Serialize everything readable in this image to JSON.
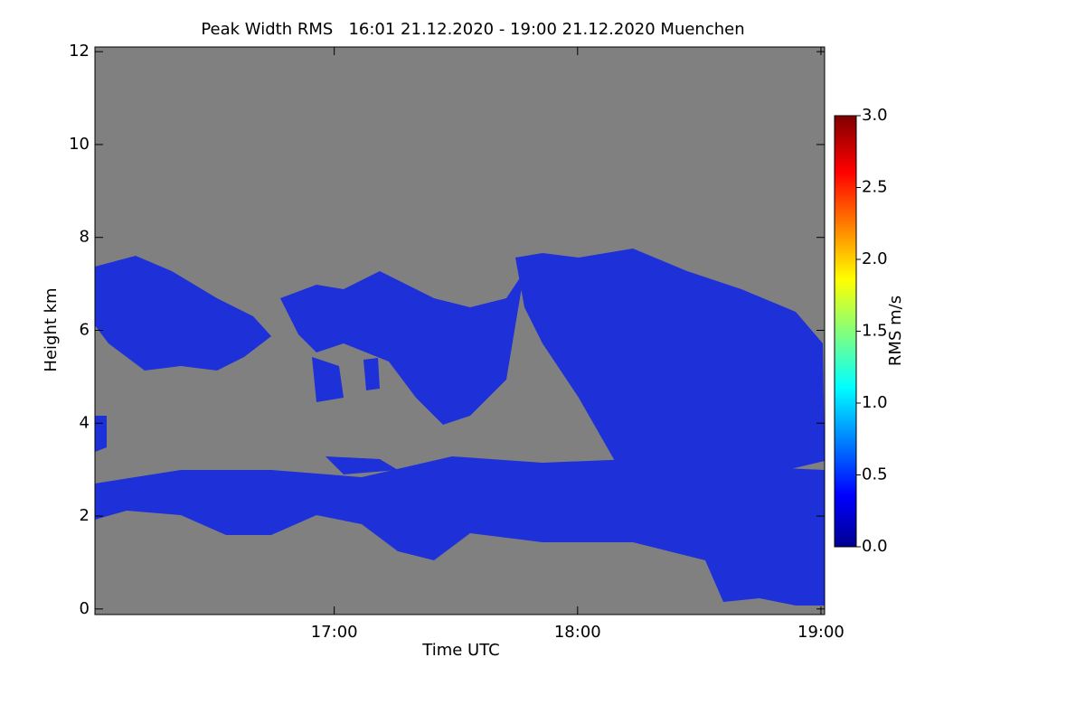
{
  "chart_data": {
    "type": "heatmap",
    "title": "Peak Width RMS   16:01 21.12.2020 - 19:00 21.12.2020 Muenchen",
    "x_label": "Time UTC",
    "y_label": "Height km",
    "xlim": [
      16.0167,
      19.015
    ],
    "xticks": [
      {
        "value": 17,
        "label": "17:00"
      },
      {
        "value": 18,
        "label": "18:00"
      },
      {
        "value": 19,
        "label": "19:00"
      }
    ],
    "ylim": [
      -0.12,
      12.1
    ],
    "yticks": [
      0,
      2,
      4,
      6,
      8,
      10,
      12
    ],
    "colorbar": {
      "label": "RMS m/s",
      "lim": [
        0,
        3
      ],
      "ticks": [
        {
          "value": 0,
          "label": "0.0"
        },
        {
          "value": 0.5,
          "label": "0.5"
        },
        {
          "value": 1,
          "label": "1.0"
        },
        {
          "value": 1.5,
          "label": "1.5"
        },
        {
          "value": 2,
          "label": "2.0"
        },
        {
          "value": 2.5,
          "label": "2.5"
        },
        {
          "value": 3,
          "label": "3.0"
        }
      ]
    },
    "background_color": "#808080",
    "echo_color": "#1e30d8"
  }
}
